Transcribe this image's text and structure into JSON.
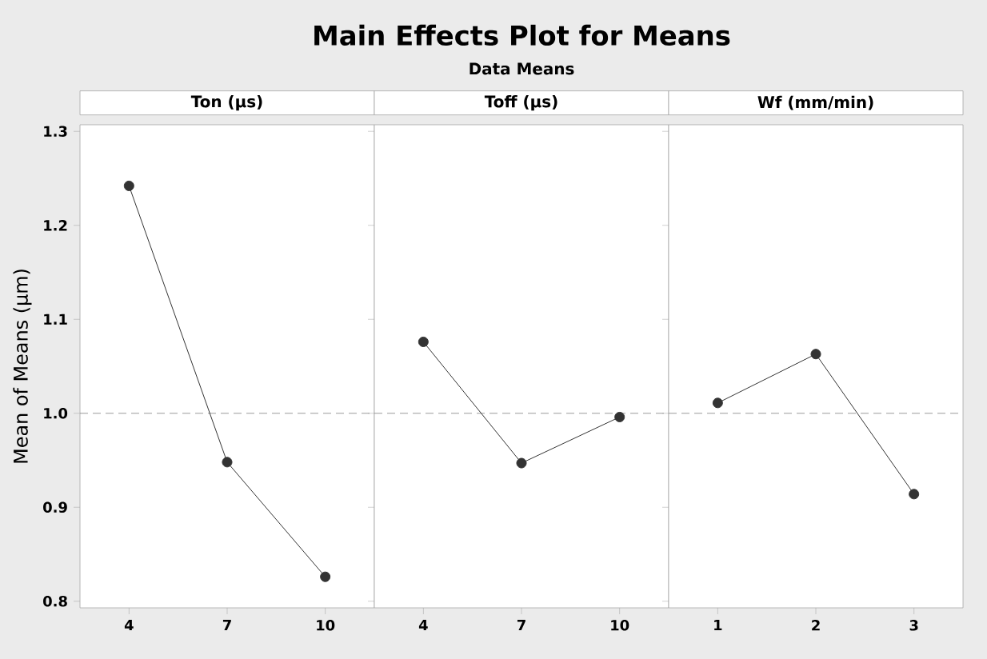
{
  "chart_data": [
    {
      "type": "line",
      "title": "Ton (µs)",
      "ylabel": "Mean of Means (µm)",
      "annotations": [
        "Main Effects Plot for Means",
        "Data Means"
      ],
      "categories": [
        "4",
        "7",
        "10"
      ],
      "values": [
        1.242,
        0.948,
        0.826
      ],
      "color": "#333333",
      "marker": "circle",
      "line_style": "solid",
      "ylim": [
        0.793,
        1.307
      ],
      "yticks": [
        0.8,
        0.9,
        {
          "value": 1.0,
          "label": "1.0"
        },
        1.1,
        1.2,
        1.3
      ],
      "ref_lines": [
        {
          "axis": "y",
          "value": 1.0,
          "color": "#808080",
          "line_style": "dashed"
        }
      ]
    },
    {
      "type": "line",
      "title": "Toff (µs)",
      "categories": [
        "4",
        "7",
        "10"
      ],
      "values": [
        1.076,
        0.947,
        0.996
      ],
      "color": "#333333",
      "marker": "circle",
      "line_style": "solid",
      "ylim": [
        0.793,
        1.307
      ],
      "yticks": [
        0.8,
        0.9,
        1.0,
        1.1,
        1.2,
        1.3
      ],
      "tick_labels": "x",
      "ref_lines": [
        {
          "axis": "y",
          "value": 1.0,
          "color": "#808080",
          "line_style": "dashed"
        }
      ]
    },
    {
      "type": "line",
      "title": "Wf (mm/min)",
      "categories": [
        "1",
        "2",
        "3"
      ],
      "values": [
        1.011,
        1.063,
        0.914
      ],
      "color": "#333333",
      "marker": "circle",
      "line_style": "solid",
      "ylim": [
        0.793,
        1.307
      ],
      "yticks": [
        0.8,
        0.9,
        1.0,
        1.1,
        1.2,
        1.3
      ],
      "tick_labels": "x",
      "ref_lines": [
        {
          "axis": "y",
          "value": 1.0,
          "color": "#808080",
          "line_style": "dashed"
        }
      ]
    }
  ]
}
